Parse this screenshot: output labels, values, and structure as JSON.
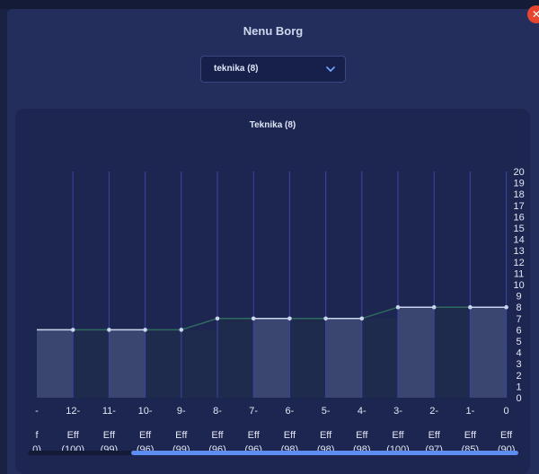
{
  "modal": {
    "title": "Nenu Borg",
    "close_icon": "close-icon"
  },
  "select": {
    "value": "teknika (8)",
    "icon": "chevron-down-icon"
  },
  "chart_data": {
    "type": "area",
    "title": "Teknika (8)",
    "categories": [
      "-",
      "12-",
      "11-",
      "10-",
      "9-",
      "8-",
      "7-",
      "6-",
      "5-",
      "4-",
      "3-",
      "2-",
      "1-",
      "0"
    ],
    "bottom_labels": [
      [
        "f",
        "0)"
      ],
      [
        "Eff",
        "(100)"
      ],
      [
        "Eff",
        "(99)"
      ],
      [
        "Eff",
        "(96)"
      ],
      [
        "Eff",
        "(99)"
      ],
      [
        "Eff",
        "(96)"
      ],
      [
        "Eff",
        "(96)"
      ],
      [
        "Eff",
        "(98)"
      ],
      [
        "Eff",
        "(98)"
      ],
      [
        "Eff",
        "(98)"
      ],
      [
        "Eff",
        "(100)"
      ],
      [
        "Eff",
        "(97)"
      ],
      [
        "Eff",
        "(85)"
      ],
      [
        "Eff",
        "(90)"
      ]
    ],
    "values": [
      6,
      6,
      6,
      6,
      6,
      7,
      7,
      7,
      7,
      7,
      8,
      8,
      8,
      8
    ],
    "ylim": [
      0,
      20
    ],
    "y_ticks": [
      "0",
      "1",
      "2",
      "3",
      "4",
      "5",
      "6",
      "7",
      "8",
      "9",
      "10",
      "11",
      "12",
      "13",
      "14",
      "15",
      "16",
      "17",
      "18",
      "19",
      "20"
    ],
    "grid": "vertical",
    "colors": {
      "bar_light": "#3a4570",
      "bar_dark": "#1f2b4d",
      "line": "#2e6a5f",
      "point": "#c9d4ee",
      "gridline": "#3a45a8"
    }
  },
  "scrollbar": {
    "position": 0.22
  }
}
